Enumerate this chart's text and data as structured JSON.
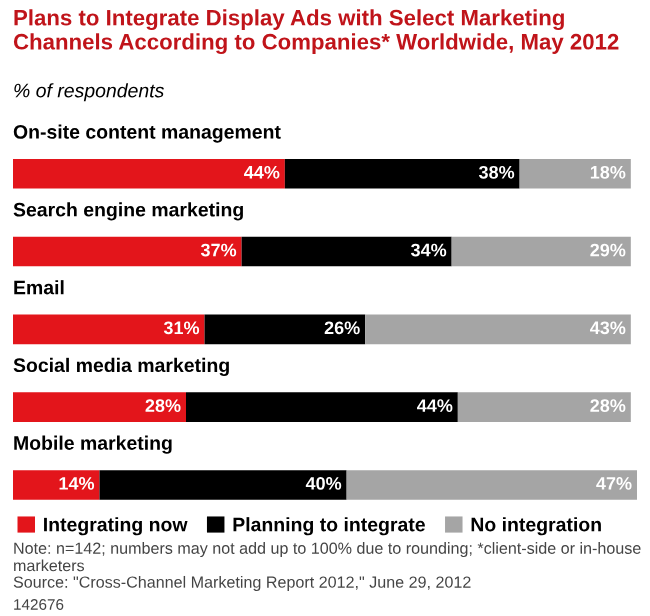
{
  "chart_data": {
    "type": "bar",
    "orientation": "horizontal",
    "stacked": true,
    "title": "Plans to Integrate Display Ads with Select Marketing Channels According to Companies* Worldwide, May 2012",
    "subtitle": "% of respondents",
    "categories": [
      "On-site content management",
      "Search engine marketing",
      "Email",
      "Social media marketing",
      "Mobile marketing"
    ],
    "series": [
      {
        "name": "Integrating now",
        "color": "#e3151b",
        "values": [
          44,
          37,
          31,
          28,
          14
        ],
        "value_labels": [
          "44%",
          "37%",
          "31%",
          "28%",
          "14%"
        ]
      },
      {
        "name": "Planning to integrate",
        "color": "#000000",
        "values": [
          38,
          34,
          26,
          44,
          40
        ],
        "value_labels": [
          "38%",
          "34%",
          "26%",
          "44%",
          "40%"
        ]
      },
      {
        "name": "No integration",
        "color": "#a5a5a5",
        "values": [
          18,
          29,
          43,
          28,
          47
        ],
        "value_labels": [
          "18%",
          "29%",
          "43%",
          "28%",
          "47%"
        ]
      }
    ],
    "legend": "bottom",
    "annotations": [
      "Note: n=142; numbers may not add up to 100% due to rounding; *client-side or in-house marketers",
      "Source: \"Cross-Channel Marketing Report 2012,\" June 29, 2012",
      "142676"
    ]
  }
}
